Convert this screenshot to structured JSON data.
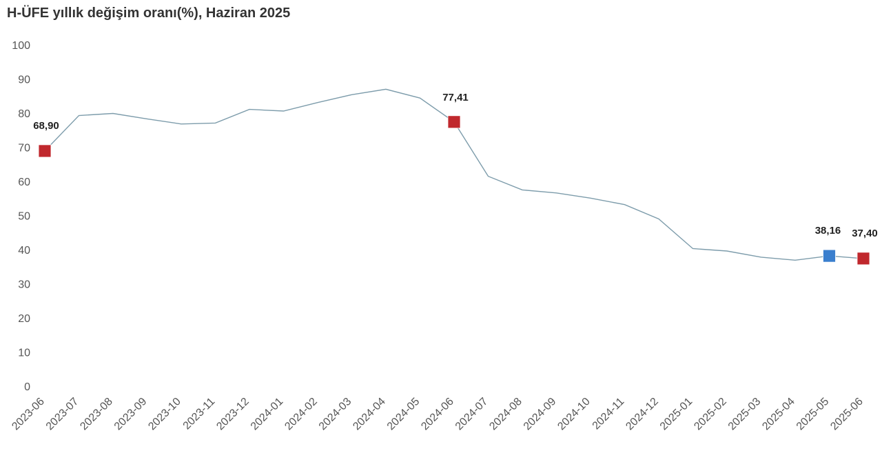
{
  "chart_data": {
    "type": "line",
    "title": "H-ÜFE yıllık değişim oranı(%), Haziran 2025",
    "xlabel": "",
    "ylabel": "",
    "ylim": [
      0,
      100
    ],
    "yticks": [
      0,
      10,
      20,
      30,
      40,
      50,
      60,
      70,
      80,
      90,
      100
    ],
    "grid": false,
    "categories": [
      "2023-06",
      "2023-07",
      "2023-08",
      "2023-09",
      "2023-10",
      "2023-11",
      "2023-12",
      "2024-01",
      "2024-02",
      "2024-03",
      "2024-04",
      "2024-05",
      "2024-06",
      "2024-07",
      "2024-08",
      "2024-09",
      "2024-10",
      "2024-11",
      "2024-12",
      "2025-01",
      "2025-02",
      "2025-03",
      "2025-04",
      "2025-05",
      "2025-06"
    ],
    "series": [
      {
        "values": [
          68.9,
          79.3,
          79.9,
          78.3,
          76.8,
          77.1,
          81.1,
          80.6,
          83.1,
          85.4,
          87.0,
          84.4,
          77.41,
          61.5,
          57.5,
          56.6,
          55.1,
          53.2,
          49.0,
          40.3,
          39.6,
          37.8,
          36.9,
          38.16,
          37.4
        ],
        "color": "#7d9cab"
      }
    ],
    "highlights": [
      {
        "category": "2023-06",
        "value": 68.9,
        "label": "68,90",
        "color": "#c0282d"
      },
      {
        "category": "2024-06",
        "value": 77.41,
        "label": "77,41",
        "color": "#c0282d"
      },
      {
        "category": "2025-05",
        "value": 38.16,
        "label": "38,16",
        "color": "#3a7fce"
      },
      {
        "category": "2025-06",
        "value": 37.4,
        "label": "37,40",
        "color": "#c0282d"
      }
    ]
  }
}
